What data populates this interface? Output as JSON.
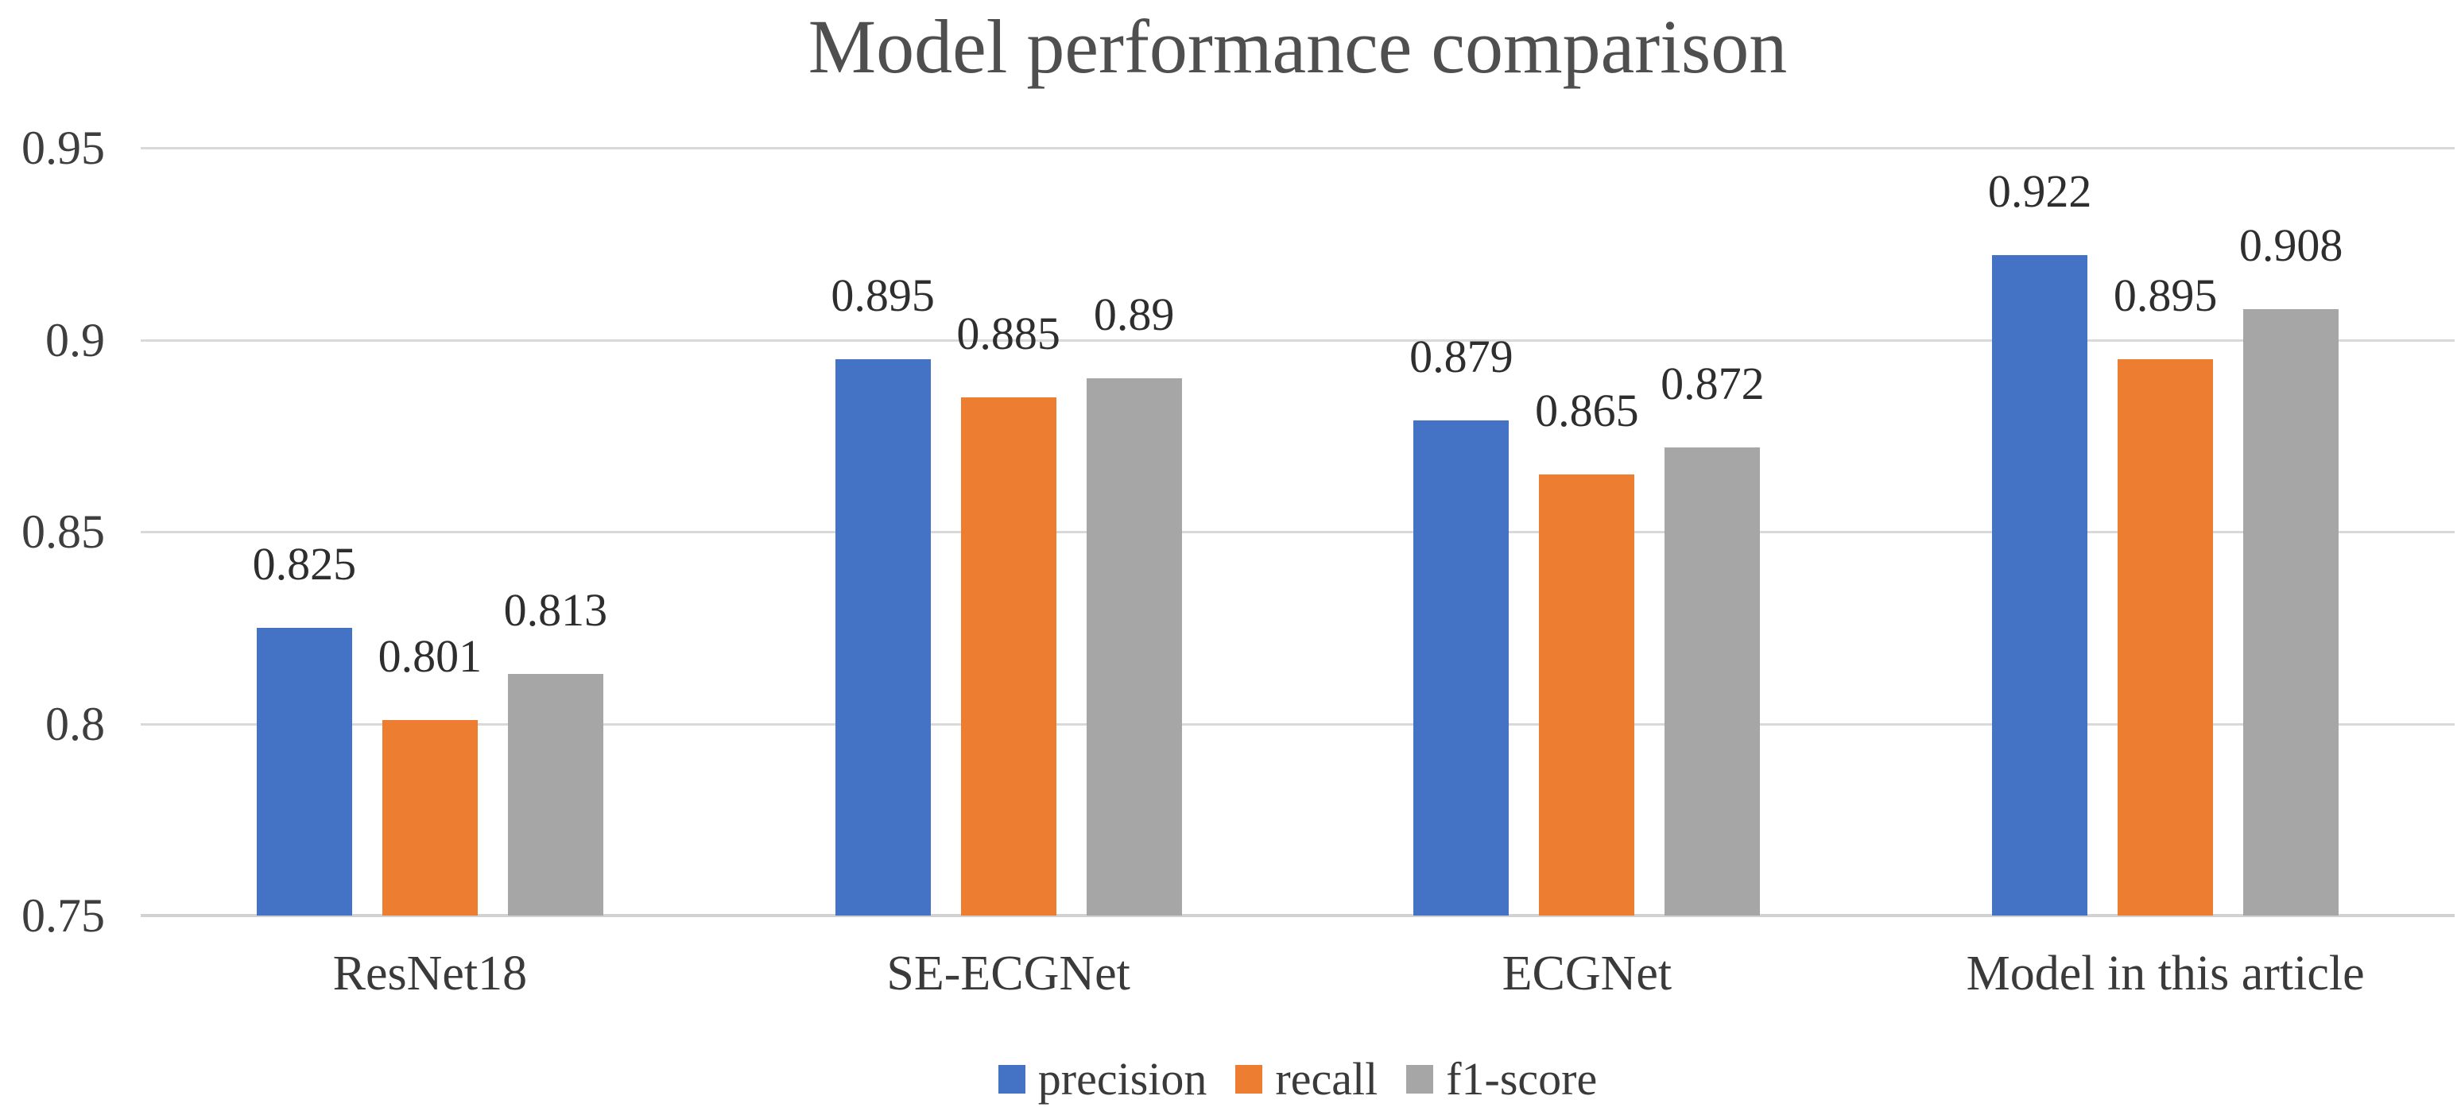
{
  "chart_data": {
    "type": "bar",
    "title": "Model performance comparison",
    "categories": [
      "ResNet18",
      "SE-ECGNet",
      "ECGNet",
      "Model in this article"
    ],
    "series": [
      {
        "name": "precision",
        "color": "#4472C4",
        "values": [
          0.825,
          0.895,
          0.879,
          0.922
        ]
      },
      {
        "name": "recall",
        "color": "#ED7D31",
        "values": [
          0.801,
          0.885,
          0.865,
          0.895
        ]
      },
      {
        "name": "f1-score",
        "color": "#A6A6A6",
        "values": [
          0.813,
          0.89,
          0.872,
          0.908
        ]
      }
    ],
    "data_labels_shown": true,
    "y_ticks": [
      "0.95",
      "0.9",
      "0.85",
      "0.8",
      "0.75"
    ],
    "y_tick_values": [
      0.95,
      0.9,
      0.85,
      0.8,
      0.75
    ],
    "ylim": [
      0.75,
      0.95
    ],
    "xlabel": "",
    "ylabel": "",
    "grid": true,
    "legend_position": "bottom"
  },
  "colors": {
    "gridline": "#D9D9D9",
    "axis_line": "#D2D2D2",
    "title_text": "#4F4F4F",
    "tick_text": "#3E3E3E",
    "label_text": "#2E2E2E"
  }
}
